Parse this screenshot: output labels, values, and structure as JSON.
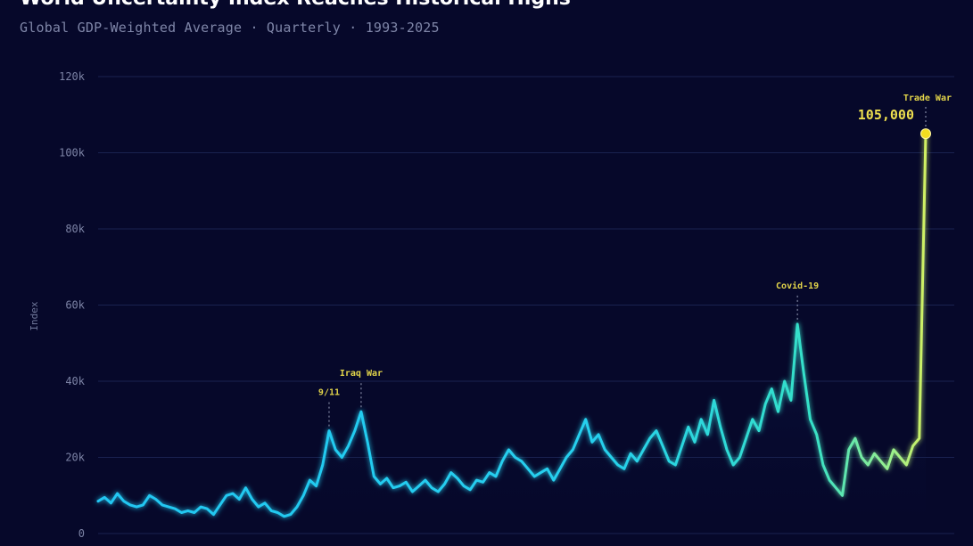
{
  "header": {
    "title": "World Uncertainty Index Reaches Historical Highs",
    "subtitle": "Global GDP-Weighted Average · Quarterly · 1993-2025"
  },
  "colors": {
    "background": "#06082a",
    "line_start": "#22c6f2",
    "line_mid": "#35e0d6",
    "line_end": "#c9f06a",
    "annotation": "#e2d44a",
    "gridline": "#1a2250"
  },
  "chart_data": {
    "type": "line",
    "title": "World Uncertainty Index Reaches Historical Highs",
    "subtitle": "Global GDP-Weighted Average · Quarterly · 1993-2025",
    "xlabel": "",
    "ylabel": "Index",
    "ylim": [
      0,
      120000
    ],
    "yticks": [
      0,
      20000,
      40000,
      60000,
      80000,
      100000,
      120000
    ],
    "ytick_labels": [
      "0",
      "20k",
      "40k",
      "60k",
      "80k",
      "100k",
      "120k"
    ],
    "grid": true,
    "legend": "none",
    "x_start": "1993 Q1",
    "x_end": "2025 Q1",
    "series": [
      {
        "values": [
          8500,
          9500,
          8000,
          10500,
          8500,
          7500,
          7000,
          7500,
          10000,
          9000,
          7500,
          7000,
          6500,
          5500,
          6000,
          5500,
          7000,
          6500,
          5000,
          7500,
          10000,
          10500,
          9000,
          12000,
          9000,
          7000,
          8000,
          6000,
          5500,
          4500,
          5000,
          7000,
          10000,
          14000,
          12500,
          18000,
          27000,
          22000,
          20000,
          23000,
          27000,
          32000,
          24000,
          15000,
          13000,
          14500,
          12000,
          12500,
          13500,
          11000,
          12500,
          14000,
          12000,
          11000,
          13000,
          16000,
          14500,
          12500,
          11500,
          14000,
          13500,
          16000,
          15000,
          19000,
          22000,
          20000,
          19000,
          17000,
          15000,
          16000,
          17000,
          14000,
          17000,
          20000,
          22000,
          26000,
          30000,
          24000,
          26000,
          22000,
          20000,
          18000,
          17000,
          21000,
          19000,
          22000,
          25000,
          27000,
          23000,
          19000,
          18000,
          23000,
          28000,
          24000,
          30000,
          26000,
          35000,
          28000,
          22000,
          18000,
          20000,
          25000,
          30000,
          27000,
          34000,
          38000,
          32000,
          40000,
          35000,
          55000,
          42000,
          30000,
          26000,
          18000,
          14000,
          12000,
          10000,
          22000,
          25000,
          20000,
          18000,
          21000,
          19000,
          17000,
          22000,
          20000,
          18000,
          23000,
          25000,
          105000
        ]
      }
    ],
    "annotations": [
      {
        "label": "9/11",
        "index": 36
      },
      {
        "label": "Iraq War",
        "index": 41
      },
      {
        "label": "Covid-19",
        "index": 109
      },
      {
        "label": "Trade War",
        "index": 129,
        "value_label": "105,000"
      }
    ]
  }
}
